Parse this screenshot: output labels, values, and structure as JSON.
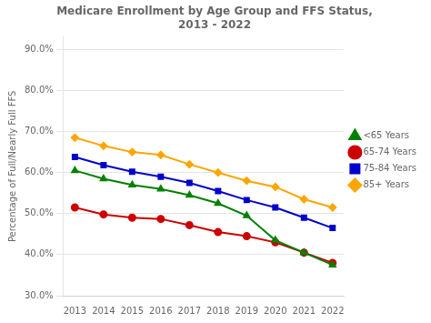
{
  "chart_data": {
    "type": "line",
    "title": "Medicare Enrollment by Age Group and FFS Status,\n2013 - 2022",
    "y_label": "Percentage of Full/Nearly Full FFS",
    "x": [
      2013,
      2014,
      2015,
      2016,
      2017,
      2018,
      2019,
      2020,
      2021,
      2022
    ],
    "series": [
      {
        "name": "<65 Years",
        "color": "#008000",
        "marker": "triangle",
        "values": [
          60.5,
          58.5,
          57.0,
          56.0,
          54.5,
          52.5,
          49.5,
          43.5,
          40.5,
          37.5
        ]
      },
      {
        "name": "65-74 Years",
        "color": "#cc0000",
        "marker": "circle",
        "values": [
          51.5,
          49.8,
          49.0,
          48.7,
          47.2,
          45.5,
          44.5,
          43.0,
          40.5,
          38.0
        ]
      },
      {
        "name": "75-84 Years",
        "color": "#0000cc",
        "marker": "square",
        "values": [
          63.8,
          61.8,
          60.2,
          59.0,
          57.5,
          55.5,
          53.3,
          51.5,
          49.0,
          46.5
        ]
      },
      {
        "name": "85+ Years",
        "color": "#ffa500",
        "marker": "diamond",
        "values": [
          68.5,
          66.5,
          65.0,
          64.3,
          62.0,
          60.0,
          58.0,
          56.5,
          53.5,
          51.5
        ]
      }
    ],
    "xlim": [
      2012.6,
      2022.4
    ],
    "xticks": [
      2013,
      2014,
      2015,
      2016,
      2017,
      2018,
      2019,
      2020,
      2021,
      2022
    ],
    "ylim": [
      30.0,
      93.0
    ],
    "yticks": [
      {
        "value": 30.0,
        "label": "30.0%"
      },
      {
        "value": 40.0,
        "label": "40.0%"
      },
      {
        "value": 50.0,
        "label": "50.0%"
      },
      {
        "value": 60.0,
        "label": "60.0%"
      },
      {
        "value": 70.0,
        "label": "70.0%"
      },
      {
        "value": 80.0,
        "label": "80.0%"
      },
      {
        "value": 90.0,
        "label": "90.0%"
      }
    ],
    "grid": "y",
    "legend": "right"
  }
}
